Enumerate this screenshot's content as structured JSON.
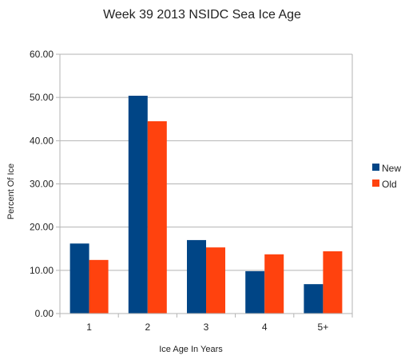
{
  "chart_data": {
    "type": "bar",
    "title": "Week 39 2013  NSIDC Sea Ice Age",
    "xlabel": "Ice Age In Years",
    "ylabel": "Percent Of Ice",
    "categories": [
      "1",
      "2",
      "3",
      "4",
      "5+"
    ],
    "series": [
      {
        "name": "New",
        "values": [
          16.2,
          50.4,
          17.0,
          9.8,
          6.8
        ],
        "color": "#004586"
      },
      {
        "name": "Old",
        "values": [
          12.4,
          44.5,
          15.3,
          13.7,
          14.4
        ],
        "color": "#ff420e"
      }
    ],
    "ylim": [
      0,
      60
    ],
    "yticks": [
      "0.00",
      "10.00",
      "20.00",
      "30.00",
      "40.00",
      "50.00",
      "60.00"
    ],
    "grid": true,
    "legend": "right"
  },
  "colors": {
    "grid": "#b3b3b3",
    "axis": "#b3b3b3"
  }
}
